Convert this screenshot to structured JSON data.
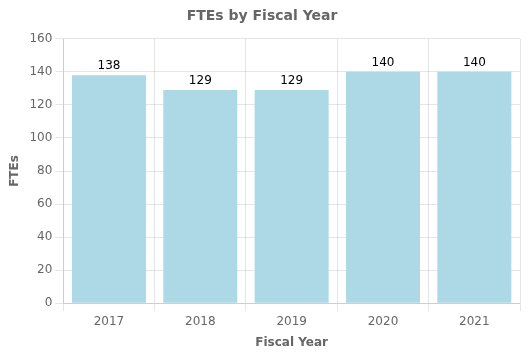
{
  "chart_data": {
    "type": "bar",
    "title": "FTEs by Fiscal Year",
    "x_label": "Fiscal Year",
    "y_label": "FTEs",
    "categories": [
      "2017",
      "2018",
      "2019",
      "2020",
      "2021"
    ],
    "values": [
      138,
      129,
      129,
      140,
      140
    ],
    "color": "#add8e6",
    "ylim": [
      0,
      160
    ],
    "yticks": [
      0,
      20,
      40,
      60,
      80,
      100,
      120,
      140,
      160
    ],
    "grid": true,
    "data_labels": true
  }
}
